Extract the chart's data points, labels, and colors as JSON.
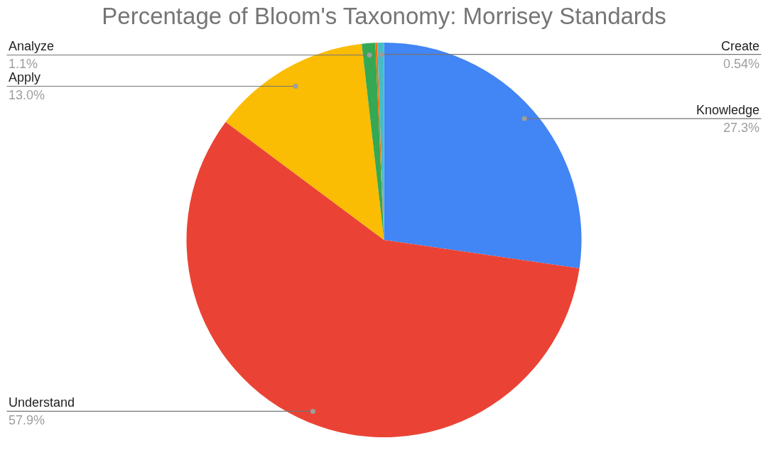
{
  "chart_data": {
    "type": "pie",
    "title": "Percentage of Bloom's Taxonomy: Morrisey Standards",
    "categories": [
      "Knowledge",
      "Understand",
      "Apply",
      "Analyze",
      null,
      "Create"
    ],
    "values": [
      27.3,
      57.9,
      13.0,
      1.1,
      0.16,
      0.54
    ],
    "colors": [
      "#4285f4",
      "#ea4335",
      "#fbbc04",
      "#34a853",
      "#ff6d01",
      "#46bdc6"
    ],
    "value_labels": [
      "27.3%",
      "57.9%",
      "13.0%",
      "1.1%",
      null,
      "0.54%"
    ]
  }
}
